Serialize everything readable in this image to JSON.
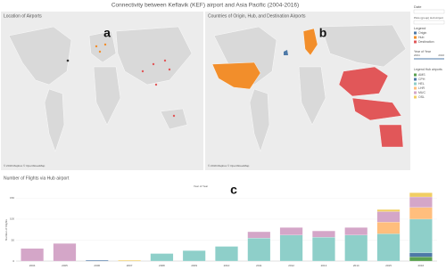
{
  "title": "Connectivity between Keflavik (KEF) airport and Asia Pacific (2004-2016)",
  "maps": [
    {
      "caption": "Location of Airports",
      "panel": "a",
      "credit": "© 2019 Mapbox © OpenStreetMap"
    },
    {
      "caption": "Countries of Origin, Hub, and Destination Airports",
      "panel": "b",
      "credit": "© 2019 Mapbox © OpenStreetMap"
    }
  ],
  "sidebar": {
    "date_label": "Date",
    "plots_label": "Plots (group) Hub Airport",
    "legend_label": "Legend",
    "roles": [
      {
        "name": "Origin",
        "color": "#4e79a7"
      },
      {
        "name": "Hub",
        "color": "#f28e2b"
      },
      {
        "name": "Destination",
        "color": "#e15759"
      }
    ],
    "year_label": "Year of Year",
    "year_from": "2004",
    "year_to": "2016",
    "hub_legend_label": "Legend Hub airports"
  },
  "chart_data": {
    "type": "bar",
    "stacked": true,
    "panel": "c",
    "title": "Number of Flights via Hub airport",
    "x_label": "Year of Year",
    "y_label": "Number of Flights",
    "categories": [
      "2004",
      "2005",
      "2006",
      "2007",
      "2008",
      "2009",
      "2010",
      "2011",
      "2012",
      "2013",
      "2014",
      "2015",
      "2016"
    ],
    "series": [
      {
        "name": "AMS",
        "color": "#59a14f",
        "values": [
          0,
          0,
          0,
          0,
          0,
          0,
          0,
          0,
          0,
          0,
          0,
          0,
          10
        ]
      },
      {
        "name": "CPH",
        "color": "#4e79a7",
        "values": [
          0,
          0,
          2,
          0,
          0,
          0,
          0,
          0,
          0,
          0,
          0,
          0,
          10
        ]
      },
      {
        "name": "HEL",
        "color": "#8ecfc9",
        "values": [
          0,
          0,
          0,
          0,
          18,
          25,
          35,
          55,
          62,
          57,
          62,
          65,
          80
        ]
      },
      {
        "name": "LHR",
        "color": "#ffbe7d",
        "values": [
          0,
          0,
          0,
          0,
          0,
          0,
          0,
          0,
          0,
          0,
          0,
          28,
          28
        ]
      },
      {
        "name": "MUC",
        "color": "#d4a6c8",
        "values": [
          30,
          42,
          0,
          0,
          0,
          0,
          0,
          15,
          18,
          15,
          18,
          25,
          25
        ]
      },
      {
        "name": "OSL",
        "color": "#f1ce63",
        "values": [
          0,
          0,
          0,
          2,
          0,
          0,
          0,
          0,
          0,
          0,
          0,
          5,
          10
        ]
      }
    ],
    "ylim": [
      0,
      170
    ],
    "yticks": [
      0,
      50,
      100,
      150
    ],
    "grid": true
  }
}
